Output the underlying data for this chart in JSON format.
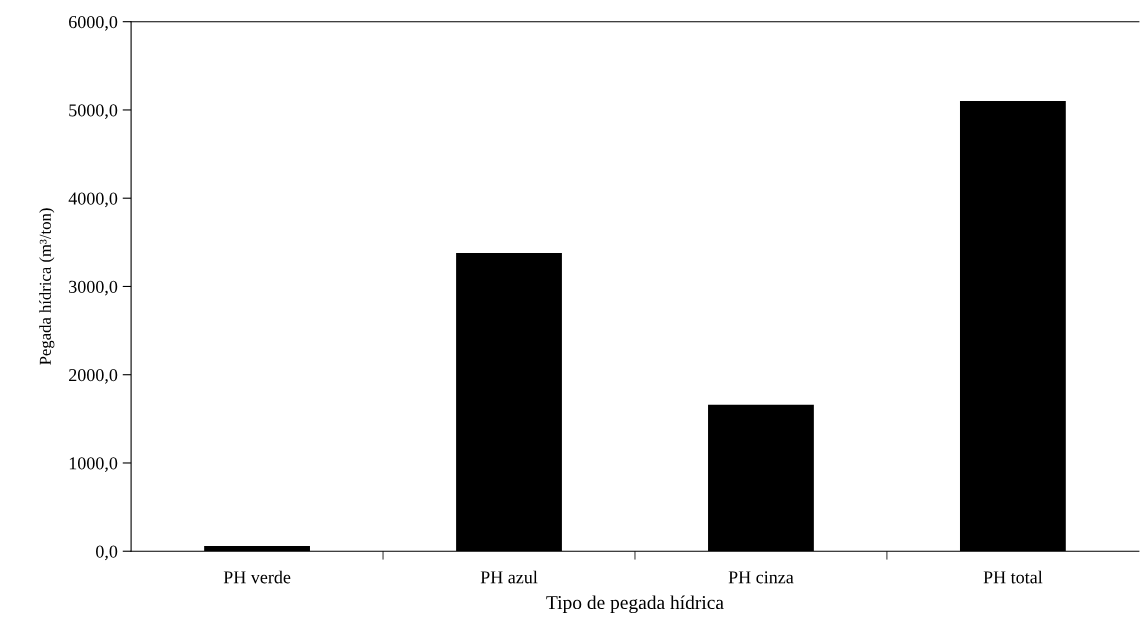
{
  "chart_data": {
    "type": "bar",
    "xlabel": "Tipo de pegada hídrica",
    "ylabel": "Pegada hídrica (m³/ton)",
    "categories": [
      "PH verde",
      "PH azul",
      "PH cinza",
      "PH total"
    ],
    "values": [
      60,
      3380,
      1660,
      5100
    ],
    "color": "#000000",
    "ylim": [
      0,
      6000
    ],
    "yticks": [
      {
        "value": 0,
        "label": "0,0"
      },
      {
        "value": 1000,
        "label": "1000,0"
      },
      {
        "value": 2000,
        "label": "2000,0"
      },
      {
        "value": 3000,
        "label": "3000,0"
      },
      {
        "value": 4000,
        "label": "4000,0"
      },
      {
        "value": 5000,
        "label": "5000,0"
      },
      {
        "value": 6000,
        "label": "6000,0"
      }
    ],
    "grid": false,
    "legend": false
  }
}
